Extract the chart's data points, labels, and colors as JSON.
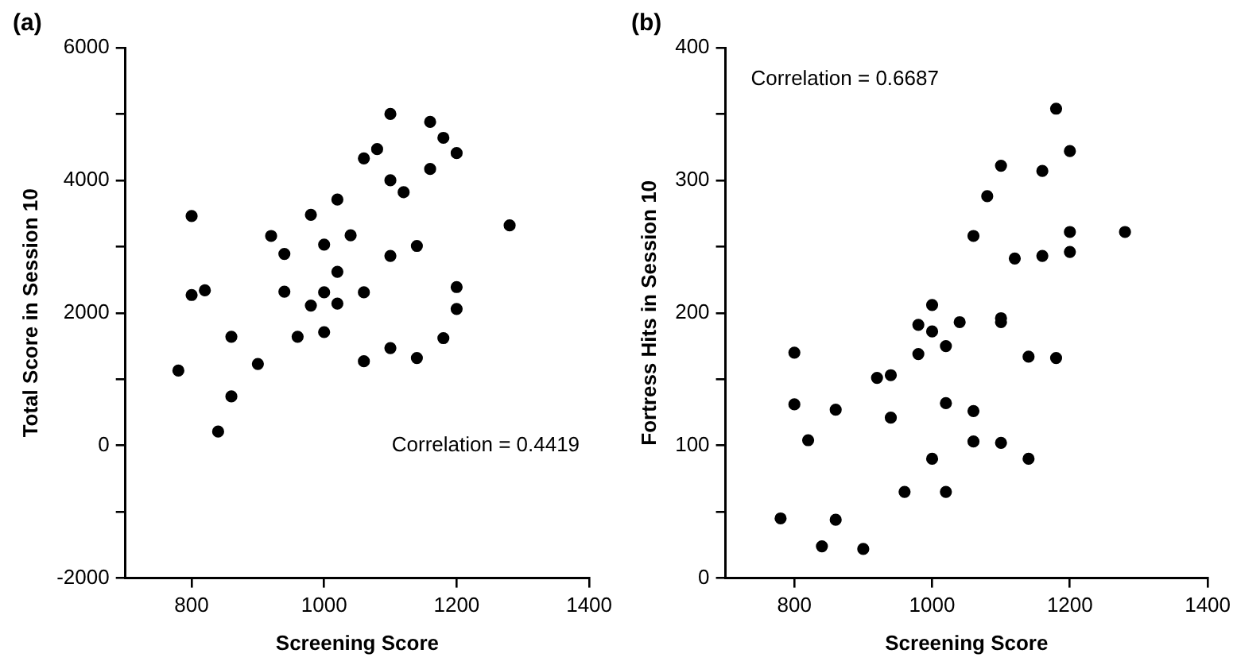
{
  "chart_data": [
    {
      "type": "scatter",
      "title": "(a)",
      "xlabel": "Screening Score",
      "ylabel": "Total Score in Session 10",
      "annotations": [
        "Correlation = 0.4419"
      ],
      "marker": "circle",
      "grid": false,
      "legend": false,
      "xlim": [
        700,
        1400
      ],
      "xticks": [
        800,
        1000,
        1200,
        1400
      ],
      "ylim": [
        -2000,
        6000
      ],
      "yticks": [
        -2000,
        {
          "value": -1000,
          "label": null
        },
        0,
        {
          "value": 1000,
          "label": null
        },
        2000,
        {
          "value": 3000,
          "label": null
        },
        4000,
        {
          "value": 5000,
          "label": null
        },
        6000
      ],
      "series": [
        {
          "color": "#000000",
          "x": [
            780,
            800,
            800,
            820,
            840,
            860,
            860,
            900,
            920,
            940,
            940,
            960,
            980,
            980,
            1000,
            1000,
            1000,
            1020,
            1020,
            1020,
            1040,
            1060,
            1060,
            1060,
            1080,
            1100,
            1100,
            1100,
            1100,
            1120,
            1140,
            1140,
            1160,
            1160,
            1180,
            1180,
            1200,
            1200,
            1200,
            1280
          ],
          "values": [
            1130,
            3460,
            2270,
            2340,
            210,
            1640,
            740,
            1230,
            3160,
            2890,
            2320,
            1640,
            3480,
            2110,
            3030,
            2310,
            1710,
            3710,
            2620,
            2140,
            3170,
            4330,
            2310,
            1270,
            4470,
            5000,
            4000,
            2860,
            1470,
            3820,
            3010,
            1320,
            4880,
            4170,
            4640,
            1620,
            4410,
            2390,
            2060,
            3320
          ]
        }
      ]
    },
    {
      "type": "scatter",
      "title": "(b)",
      "xlabel": "Screening Score",
      "ylabel": "Fortress Hits in Session 10",
      "annotations": [
        "Correlation = 0.6687"
      ],
      "marker": "circle",
      "grid": false,
      "legend": false,
      "xlim": [
        700,
        1400
      ],
      "xticks": [
        800,
        1000,
        1200,
        1400
      ],
      "ylim": [
        0,
        400
      ],
      "yticks": [
        0,
        {
          "value": 50,
          "label": null
        },
        100,
        {
          "value": 150,
          "label": null
        },
        200,
        {
          "value": 250,
          "label": null
        },
        300,
        {
          "value": 350,
          "label": null
        },
        400
      ],
      "series": [
        {
          "color": "#000000",
          "x": [
            780,
            800,
            800,
            820,
            840,
            860,
            860,
            900,
            920,
            940,
            940,
            960,
            980,
            980,
            1000,
            1000,
            1000,
            1020,
            1020,
            1020,
            1040,
            1060,
            1060,
            1060,
            1080,
            1100,
            1100,
            1100,
            1100,
            1120,
            1140,
            1140,
            1160,
            1160,
            1180,
            1180,
            1200,
            1200,
            1200,
            1280
          ],
          "values": [
            45,
            170,
            131,
            104,
            24,
            127,
            44,
            22,
            151,
            153,
            121,
            65,
            191,
            169,
            206,
            186,
            90,
            175,
            132,
            65,
            193,
            258,
            126,
            103,
            288,
            311,
            196,
            193,
            102,
            241,
            167,
            90,
            307,
            243,
            354,
            166,
            322,
            261,
            246,
            261
          ]
        }
      ]
    }
  ]
}
